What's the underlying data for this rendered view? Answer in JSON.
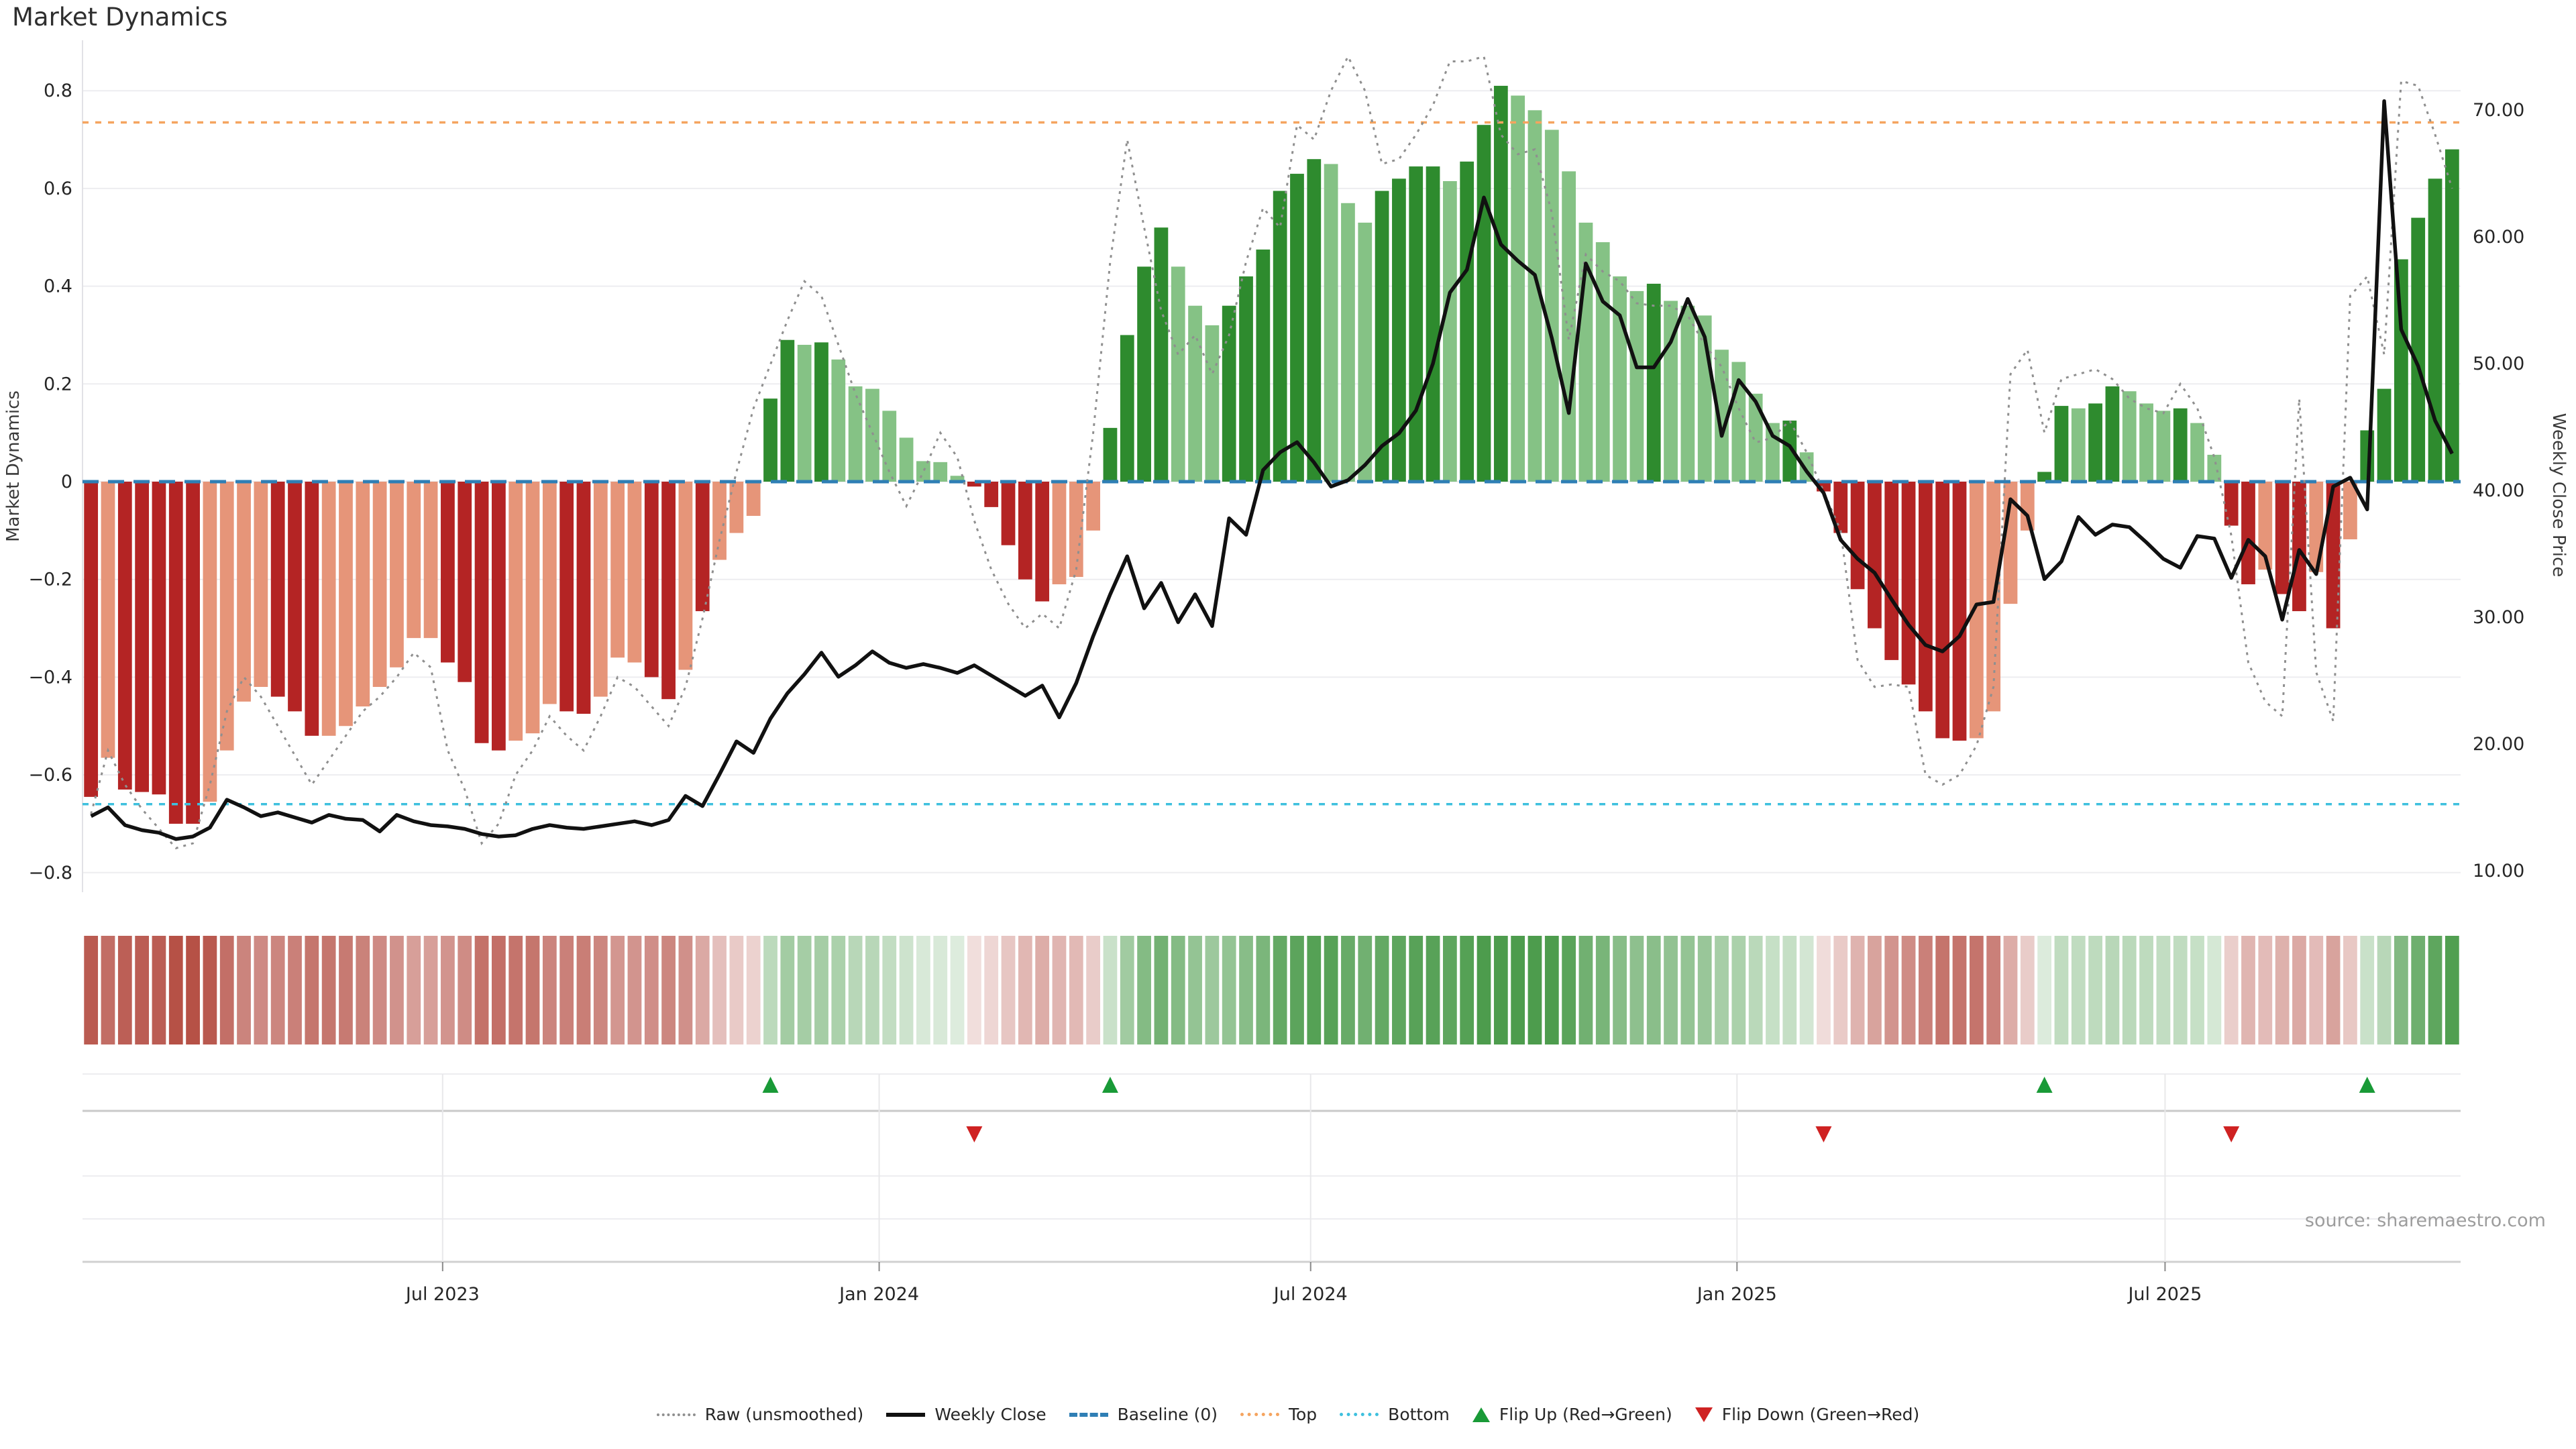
{
  "title": "Market Dynamics",
  "source_note": "source: sharemaestro.com",
  "colors": {
    "bar_strong_green": "#2e8b2e",
    "bar_light_green": "#85c285",
    "bar_strong_red": "#b42424",
    "bar_light_red": "#e69579",
    "baseline_blue": "#2f7fb5",
    "top_orange": "#f5a45f",
    "bottom_cyan": "#3ec0de",
    "raw_gray": "#8f8f8f",
    "close_black": "#111111",
    "grid": "#ededf0",
    "panel_line": "#c9c9c9",
    "axis_text": "#262626",
    "muted_text": "#9d9d9d",
    "flip_up_green": "#199a37",
    "flip_down_red": "#cf2222"
  },
  "left_axis": {
    "title": "Market Dynamics",
    "tick_labels": [
      "0.8",
      "0.6",
      "0.4",
      "0.2",
      "0",
      "−0.2",
      "−0.4",
      "−0.6",
      "−0.8"
    ],
    "tick_values": [
      0.8,
      0.6,
      0.4,
      0.2,
      0,
      -0.2,
      -0.4,
      -0.6,
      -0.8
    ]
  },
  "right_axis": {
    "title": "Weekly Close Price",
    "tick_labels": [
      "70.00",
      "60.00",
      "50.00",
      "40.00",
      "30.00",
      "20.00",
      "10.00"
    ],
    "tick_values": [
      70,
      60,
      50,
      40,
      30,
      20,
      10
    ]
  },
  "x_axis": {
    "tick_labels": [
      "Jul 2023",
      "Jan 2024",
      "Jul 2024",
      "Jan 2025",
      "Jul 2025"
    ],
    "tick_week_index": [
      20.7,
      46.4,
      71.8,
      96.9,
      122.1
    ]
  },
  "legend": {
    "items": [
      {
        "label": "Raw (unsmoothed)",
        "swatch": "raw"
      },
      {
        "label": "Weekly Close",
        "swatch": "close"
      },
      {
        "label": "Baseline (0)",
        "swatch": "base"
      },
      {
        "label": "Top",
        "swatch": "top"
      },
      {
        "label": "Bottom",
        "swatch": "bot"
      },
      {
        "label": "Flip Up (Red→Green)",
        "swatch": "flipup"
      },
      {
        "label": "Flip Down (Green→Red)",
        "swatch": "flipdown"
      }
    ]
  },
  "chart_data": {
    "type": "bar",
    "description": "Weekly market-dynamics oscillator bars (left axis), raw unsmoothed oscillator dotted line (left axis), weekly close price line (right axis), heatmap strip of bar intensity, and flip-up/flip-down event marker rows.",
    "left_ylim": [
      -0.9,
      0.9
    ],
    "right_ylim": [
      8,
      72
    ],
    "baseline": 0,
    "top_threshold": 0.735,
    "bottom_threshold": -0.66,
    "weeks": 140,
    "bars_value_strong": [
      [
        -0.645,
        1
      ],
      [
        -0.565,
        0
      ],
      [
        -0.63,
        1
      ],
      [
        -0.635,
        1
      ],
      [
        -0.64,
        1
      ],
      [
        -0.7,
        1
      ],
      [
        -0.7,
        1
      ],
      [
        -0.655,
        0
      ],
      [
        -0.55,
        0
      ],
      [
        -0.45,
        0
      ],
      [
        -0.42,
        0
      ],
      [
        -0.44,
        1
      ],
      [
        -0.47,
        1
      ],
      [
        -0.52,
        1
      ],
      [
        -0.52,
        0
      ],
      [
        -0.5,
        0
      ],
      [
        -0.46,
        0
      ],
      [
        -0.42,
        0
      ],
      [
        -0.38,
        0
      ],
      [
        -0.32,
        0
      ],
      [
        -0.32,
        0
      ],
      [
        -0.37,
        1
      ],
      [
        -0.41,
        1
      ],
      [
        -0.535,
        1
      ],
      [
        -0.55,
        1
      ],
      [
        -0.53,
        0
      ],
      [
        -0.515,
        0
      ],
      [
        -0.455,
        0
      ],
      [
        -0.47,
        1
      ],
      [
        -0.475,
        1
      ],
      [
        -0.44,
        0
      ],
      [
        -0.36,
        0
      ],
      [
        -0.37,
        0
      ],
      [
        -0.4,
        1
      ],
      [
        -0.445,
        1
      ],
      [
        -0.385,
        0
      ],
      [
        -0.265,
        1
      ],
      [
        -0.16,
        0
      ],
      [
        -0.105,
        0
      ],
      [
        -0.07,
        0
      ],
      [
        0.17,
        1
      ],
      [
        0.29,
        1
      ],
      [
        0.28,
        0
      ],
      [
        0.285,
        1
      ],
      [
        0.25,
        0
      ],
      [
        0.195,
        0
      ],
      [
        0.19,
        0
      ],
      [
        0.145,
        0
      ],
      [
        0.09,
        0
      ],
      [
        0.042,
        0
      ],
      [
        0.04,
        0
      ],
      [
        0.012,
        0
      ],
      [
        -0.01,
        1
      ],
      [
        -0.052,
        1
      ],
      [
        -0.13,
        1
      ],
      [
        -0.2,
        1
      ],
      [
        -0.245,
        1
      ],
      [
        -0.21,
        0
      ],
      [
        -0.195,
        0
      ],
      [
        -0.1,
        0
      ],
      [
        0.11,
        1
      ],
      [
        0.3,
        1
      ],
      [
        0.44,
        1
      ],
      [
        0.52,
        1
      ],
      [
        0.44,
        0
      ],
      [
        0.36,
        0
      ],
      [
        0.32,
        0
      ],
      [
        0.36,
        1
      ],
      [
        0.42,
        1
      ],
      [
        0.475,
        1
      ],
      [
        0.595,
        1
      ],
      [
        0.63,
        1
      ],
      [
        0.66,
        1
      ],
      [
        0.65,
        0
      ],
      [
        0.57,
        0
      ],
      [
        0.53,
        0
      ],
      [
        0.595,
        1
      ],
      [
        0.62,
        1
      ],
      [
        0.645,
        1
      ],
      [
        0.645,
        1
      ],
      [
        0.615,
        0
      ],
      [
        0.655,
        1
      ],
      [
        0.73,
        1
      ],
      [
        0.81,
        1
      ],
      [
        0.79,
        0
      ],
      [
        0.76,
        0
      ],
      [
        0.72,
        0
      ],
      [
        0.635,
        0
      ],
      [
        0.53,
        0
      ],
      [
        0.49,
        0
      ],
      [
        0.42,
        0
      ],
      [
        0.39,
        0
      ],
      [
        0.405,
        1
      ],
      [
        0.37,
        0
      ],
      [
        0.36,
        0
      ],
      [
        0.34,
        0
      ],
      [
        0.27,
        0
      ],
      [
        0.245,
        0
      ],
      [
        0.18,
        0
      ],
      [
        0.12,
        0
      ],
      [
        0.125,
        1
      ],
      [
        0.06,
        0
      ],
      [
        -0.02,
        1
      ],
      [
        -0.105,
        1
      ],
      [
        -0.22,
        1
      ],
      [
        -0.3,
        1
      ],
      [
        -0.365,
        1
      ],
      [
        -0.415,
        1
      ],
      [
        -0.47,
        1
      ],
      [
        -0.525,
        1
      ],
      [
        -0.53,
        1
      ],
      [
        -0.525,
        0
      ],
      [
        -0.47,
        0
      ],
      [
        -0.25,
        0
      ],
      [
        -0.1,
        0
      ],
      [
        0.02,
        1
      ],
      [
        0.155,
        1
      ],
      [
        0.15,
        0
      ],
      [
        0.16,
        1
      ],
      [
        0.195,
        1
      ],
      [
        0.185,
        0
      ],
      [
        0.16,
        0
      ],
      [
        0.145,
        0
      ],
      [
        0.15,
        1
      ],
      [
        0.12,
        0
      ],
      [
        0.055,
        0
      ],
      [
        -0.09,
        1
      ],
      [
        -0.21,
        1
      ],
      [
        -0.18,
        0
      ],
      [
        -0.23,
        1
      ],
      [
        -0.265,
        1
      ],
      [
        -0.185,
        0
      ],
      [
        -0.3,
        1
      ],
      [
        -0.118,
        0
      ],
      [
        0.105,
        1
      ],
      [
        0.19,
        1
      ],
      [
        0.455,
        1
      ],
      [
        0.54,
        1
      ],
      [
        0.62,
        1
      ],
      [
        0.68,
        1
      ]
    ],
    "raw": [
      -0.68,
      -0.55,
      -0.62,
      -0.67,
      -0.71,
      -0.75,
      -0.74,
      -0.62,
      -0.47,
      -0.4,
      -0.44,
      -0.5,
      -0.56,
      -0.62,
      -0.57,
      -0.52,
      -0.47,
      -0.44,
      -0.4,
      -0.35,
      -0.38,
      -0.55,
      -0.63,
      -0.74,
      -0.7,
      -0.6,
      -0.55,
      -0.48,
      -0.52,
      -0.55,
      -0.48,
      -0.4,
      -0.42,
      -0.46,
      -0.5,
      -0.42,
      -0.28,
      -0.12,
      0.02,
      0.15,
      0.24,
      0.33,
      0.41,
      0.38,
      0.28,
      0.18,
      0.1,
      0.02,
      -0.05,
      0.02,
      0.1,
      0.05,
      -0.08,
      -0.18,
      -0.25,
      -0.3,
      -0.27,
      -0.3,
      -0.18,
      0.1,
      0.45,
      0.7,
      0.52,
      0.35,
      0.26,
      0.3,
      0.22,
      0.3,
      0.45,
      0.56,
      0.52,
      0.73,
      0.7,
      0.8,
      0.87,
      0.8,
      0.65,
      0.66,
      0.71,
      0.77,
      0.86,
      0.86,
      0.87,
      0.71,
      0.67,
      0.68,
      0.55,
      0.29,
      0.465,
      0.43,
      0.41,
      0.365,
      0.36,
      0.36,
      0.34,
      0.28,
      0.235,
      0.15,
      0.08,
      0.09,
      0.125,
      0.06,
      -0.02,
      -0.1,
      -0.365,
      -0.42,
      -0.415,
      -0.42,
      -0.6,
      -0.62,
      -0.6,
      -0.54,
      -0.42,
      0.22,
      0.27,
      0.1,
      0.21,
      0.22,
      0.23,
      0.21,
      0.17,
      0.15,
      0.14,
      0.2,
      0.15,
      0.05,
      -0.11,
      -0.37,
      -0.45,
      -0.48,
      0.17,
      -0.39,
      -0.49,
      0.38,
      0.42,
      0.26,
      0.82,
      0.81,
      0.71,
      0.6
    ],
    "weekly_close": [
      14.3,
      15.0,
      13.6,
      13.2,
      13.0,
      12.5,
      12.7,
      13.4,
      15.6,
      15.0,
      14.3,
      14.6,
      14.2,
      13.8,
      14.4,
      14.1,
      14.0,
      13.1,
      14.4,
      13.9,
      13.6,
      13.5,
      13.3,
      12.9,
      12.7,
      12.8,
      13.3,
      13.6,
      13.4,
      13.3,
      13.5,
      13.7,
      13.9,
      13.6,
      14.0,
      15.9,
      15.1,
      17.6,
      20.2,
      19.3,
      22.0,
      24.0,
      25.5,
      27.2,
      25.3,
      26.2,
      27.3,
      26.4,
      26.0,
      26.3,
      26.0,
      25.6,
      26.2,
      25.4,
      24.6,
      23.8,
      24.6,
      22.1,
      24.8,
      28.5,
      31.8,
      34.8,
      30.7,
      32.7,
      29.6,
      31.8,
      29.3,
      37.8,
      36.5,
      41.6,
      43.0,
      43.8,
      42.2,
      40.3,
      40.8,
      42.0,
      43.5,
      44.5,
      46.3,
      50.0,
      55.6,
      57.4,
      63.1,
      59.4,
      58.1,
      57.0,
      52.0,
      46.1,
      57.9,
      54.9,
      53.8,
      49.7,
      49.7,
      51.7,
      55.1,
      52.1,
      44.3,
      48.7,
      47.0,
      44.3,
      43.5,
      41.5,
      39.8,
      36.1,
      34.6,
      33.5,
      31.4,
      29.4,
      27.8,
      27.3,
      28.5,
      31.0,
      31.2,
      39.3,
      38.0,
      33.0,
      34.4,
      37.9,
      36.5,
      37.3,
      37.1,
      35.9,
      34.6,
      33.9,
      36.4,
      36.2,
      33.1,
      36.1,
      34.8,
      29.8,
      35.3,
      33.4,
      40.3,
      41.0,
      38.5,
      70.7,
      52.7,
      49.8,
      45.5,
      42.9
    ],
    "flip_up_weeks": [
      40,
      60,
      115,
      134
    ],
    "flip_down_weeks": [
      52,
      102,
      126
    ]
  }
}
